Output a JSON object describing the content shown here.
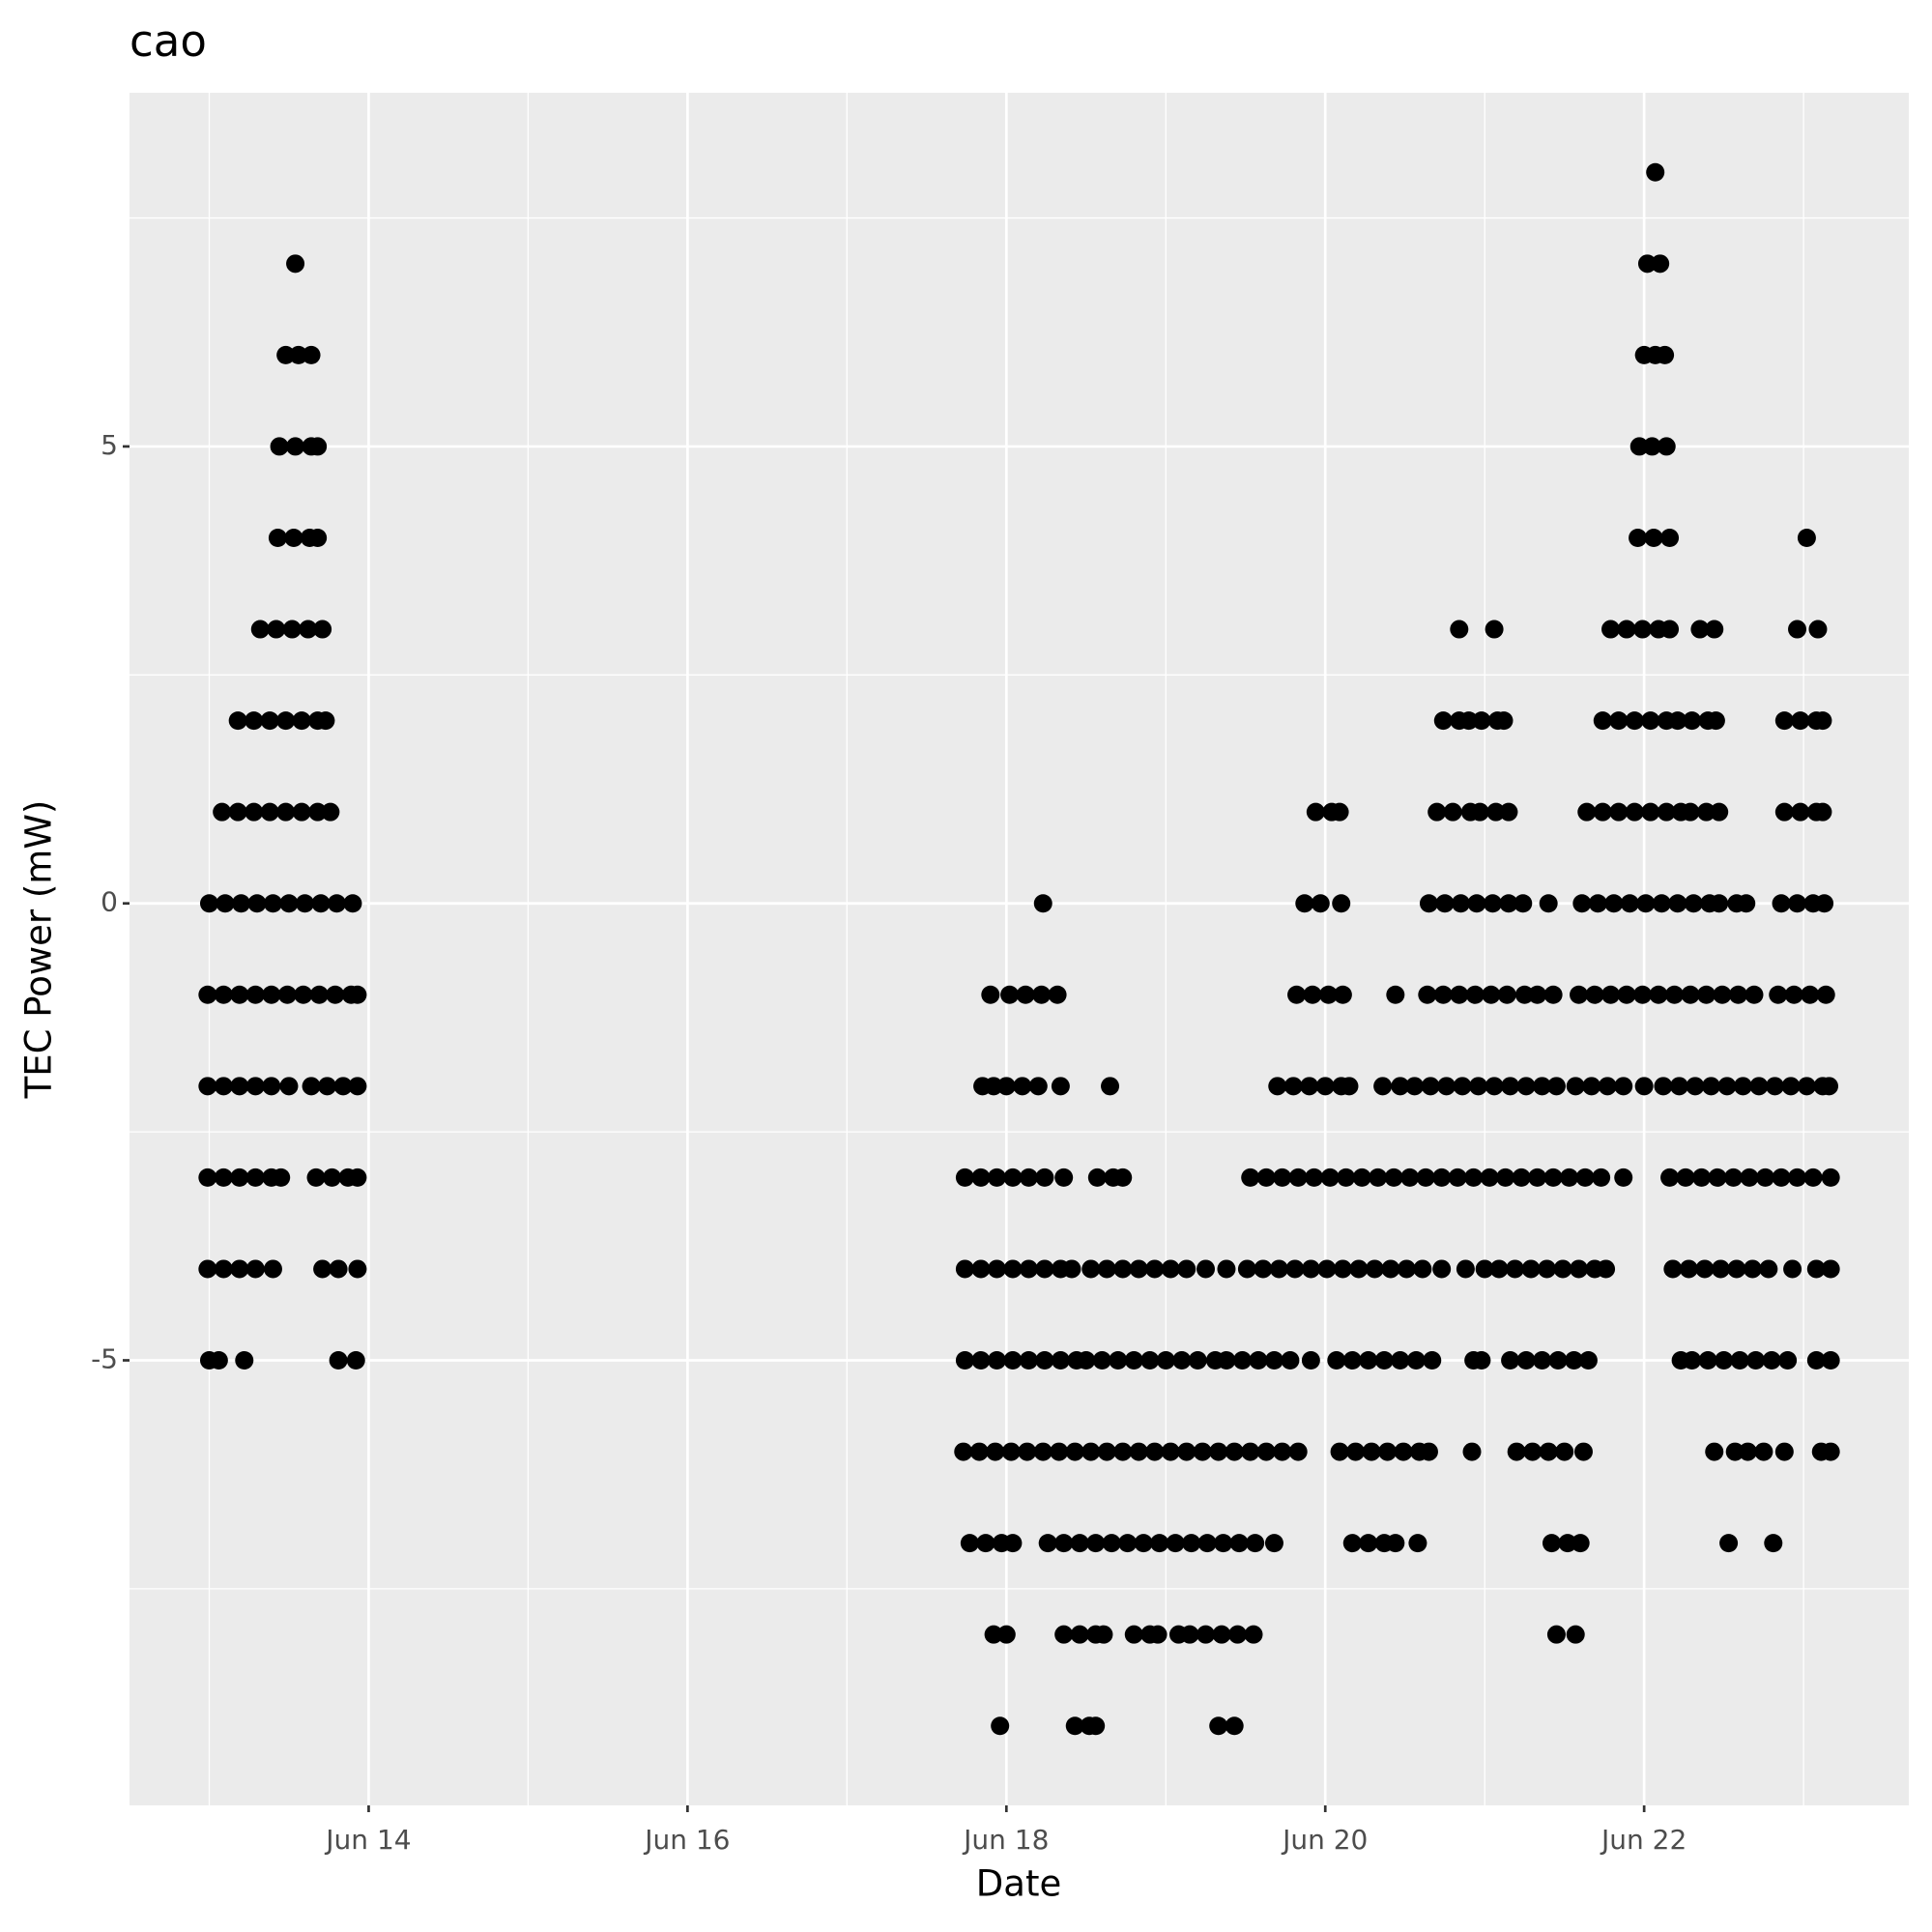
{
  "chart_data": {
    "type": "scatter",
    "title": "cao",
    "xlabel": "Date",
    "ylabel": "TEC Power (mW)",
    "xlim": [
      12.5,
      23.66
    ],
    "ylim": [
      -9.87,
      8.87
    ],
    "xticks": [
      {
        "value": 14,
        "label": "Jun 14"
      },
      {
        "value": 16,
        "label": "Jun 16"
      },
      {
        "value": 18,
        "label": "Jun 18"
      },
      {
        "value": 20,
        "label": "Jun 20"
      },
      {
        "value": 22,
        "label": "Jun 22"
      }
    ],
    "yticks": [
      -5,
      0,
      5
    ],
    "grid": true,
    "color": "#000000",
    "series": [
      {
        "x": [
          22.07
        ],
        "values": [
          8
        ]
      },
      {
        "x": [
          13.54,
          22.02,
          22.1
        ],
        "values": [
          7,
          7,
          7
        ]
      },
      {
        "x": [
          13.48,
          13.56,
          13.64,
          22.0,
          22.07,
          22.13
        ],
        "values": [
          6,
          6,
          6,
          6,
          6,
          6
        ]
      },
      {
        "x": [
          13.44,
          13.54,
          13.64,
          13.68,
          21.97,
          22.05,
          22.14
        ],
        "values": [
          5,
          5,
          5,
          5,
          5,
          5,
          5
        ]
      },
      {
        "x": [
          13.43,
          13.53,
          13.63,
          13.68,
          21.96,
          22.06,
          22.16,
          23.02
        ],
        "values": [
          4,
          4,
          4,
          4,
          4,
          4,
          4,
          4
        ]
      },
      {
        "x": [
          13.32,
          13.42,
          13.52,
          13.62,
          13.71,
          20.84,
          21.06,
          21.79,
          21.89,
          21.99,
          22.09,
          22.16,
          22.35,
          22.44,
          22.96,
          23.09
        ],
        "values": [
          3,
          3,
          3,
          3,
          3,
          3,
          3,
          3,
          3,
          3,
          3,
          3,
          3,
          3,
          3,
          3
        ]
      },
      {
        "x": [
          13.18,
          13.28,
          13.38,
          13.48,
          13.58,
          13.68,
          13.73,
          20.74,
          20.84,
          20.9,
          20.98,
          21.08,
          21.12,
          21.74,
          21.84,
          21.94,
          22.04,
          22.14,
          22.21,
          22.3,
          22.4,
          22.45,
          22.88,
          22.98,
          23.08,
          23.12
        ],
        "values": [
          2,
          2,
          2,
          2,
          2,
          2,
          2,
          2,
          2,
          2,
          2,
          2,
          2,
          2,
          2,
          2,
          2,
          2,
          2,
          2,
          2,
          2,
          2,
          2,
          2,
          2
        ]
      },
      {
        "x": [
          13.08,
          13.18,
          13.28,
          13.38,
          13.48,
          13.58,
          13.68,
          13.76,
          19.94,
          20.04,
          20.09,
          20.7,
          20.8,
          20.91,
          20.97,
          21.07,
          21.15,
          21.64,
          21.74,
          21.84,
          21.94,
          22.04,
          22.14,
          22.23,
          22.29,
          22.39,
          22.47,
          22.88,
          22.98,
          23.08,
          23.12
        ],
        "values": [
          1,
          1,
          1,
          1,
          1,
          1,
          1,
          1,
          1,
          1,
          1,
          1,
          1,
          1,
          1,
          1,
          1,
          1,
          1,
          1,
          1,
          1,
          1,
          1,
          1,
          1,
          1,
          1,
          1,
          1,
          1
        ]
      },
      {
        "x": [
          13.0,
          13.1,
          13.2,
          13.3,
          13.4,
          13.5,
          13.6,
          13.7,
          13.8,
          13.9,
          18.23,
          19.87,
          19.97,
          20.1,
          20.65,
          20.75,
          20.85,
          20.95,
          21.05,
          21.15,
          21.24,
          21.4,
          21.61,
          21.71,
          21.81,
          21.91,
          22.01,
          22.11,
          22.21,
          22.31,
          22.41,
          22.47,
          22.58,
          22.64,
          22.86,
          22.96,
          23.06,
          23.13
        ],
        "values": [
          0,
          0,
          0,
          0,
          0,
          0,
          0,
          0,
          0,
          0,
          0,
          0,
          0,
          0,
          0,
          0,
          0,
          0,
          0,
          0,
          0,
          0,
          0,
          0,
          0,
          0,
          0,
          0,
          0,
          0,
          0,
          0,
          0,
          0,
          0,
          0,
          0,
          0
        ]
      },
      {
        "x": [
          12.99,
          13.09,
          13.19,
          13.29,
          13.39,
          13.49,
          13.59,
          13.69,
          13.79,
          13.89,
          13.93,
          17.9,
          18.02,
          18.12,
          18.22,
          18.32,
          19.82,
          19.92,
          20.02,
          20.11,
          20.44,
          20.64,
          20.74,
          20.84,
          20.94,
          21.04,
          21.14,
          21.25,
          21.33,
          21.43,
          21.59,
          21.69,
          21.79,
          21.89,
          21.99,
          22.09,
          22.19,
          22.29,
          22.39,
          22.49,
          22.59,
          22.69,
          22.84,
          22.94,
          23.04,
          23.14
        ],
        "values": [
          -1,
          -1,
          -1,
          -1,
          -1,
          -1,
          -1,
          -1,
          -1,
          -1,
          -1,
          -1,
          -1,
          -1,
          -1,
          -1,
          -1,
          -1,
          -1,
          -1,
          -1,
          -1,
          -1,
          -1,
          -1,
          -1,
          -1,
          -1,
          -1,
          -1,
          -1,
          -1,
          -1,
          -1,
          -1,
          -1,
          -1,
          -1,
          -1,
          -1,
          -1,
          -1,
          -1,
          -1,
          -1,
          -1
        ]
      },
      {
        "x": [
          12.99,
          13.09,
          13.19,
          13.29,
          13.39,
          13.5,
          13.64,
          13.74,
          13.84,
          13.93,
          17.85,
          17.92,
          18.0,
          18.1,
          18.2,
          18.34,
          18.65,
          19.7,
          19.8,
          19.9,
          20.0,
          20.1,
          20.15,
          20.36,
          20.47,
          20.56,
          20.66,
          20.76,
          20.86,
          20.96,
          21.06,
          21.16,
          21.26,
          21.36,
          21.45,
          21.57,
          21.67,
          21.77,
          21.87,
          22.0,
          22.12,
          22.22,
          22.32,
          22.42,
          22.52,
          22.62,
          22.72,
          22.82,
          22.92,
          23.02,
          23.12,
          23.16
        ],
        "values": [
          -2,
          -2,
          -2,
          -2,
          -2,
          -2,
          -2,
          -2,
          -2,
          -2,
          -2,
          -2,
          -2,
          -2,
          -2,
          -2,
          -2,
          -2,
          -2,
          -2,
          -2,
          -2,
          -2,
          -2,
          -2,
          -2,
          -2,
          -2,
          -2,
          -2,
          -2,
          -2,
          -2,
          -2,
          -2,
          -2,
          -2,
          -2,
          -2,
          -2,
          -2,
          -2,
          -2,
          -2,
          -2,
          -2,
          -2,
          -2,
          -2,
          -2,
          -2,
          -2
        ]
      },
      {
        "x": [
          12.99,
          13.09,
          13.19,
          13.29,
          13.39,
          13.45,
          13.67,
          13.77,
          13.87,
          13.93,
          17.74,
          17.84,
          17.94,
          18.04,
          18.14,
          18.24,
          18.36,
          18.57,
          18.67,
          18.73,
          19.53,
          19.63,
          19.73,
          19.83,
          19.93,
          20.03,
          20.13,
          20.23,
          20.33,
          20.43,
          20.53,
          20.63,
          20.73,
          20.83,
          20.93,
          21.03,
          21.13,
          21.23,
          21.33,
          21.43,
          21.53,
          21.63,
          21.73,
          21.87,
          22.16,
          22.26,
          22.36,
          22.46,
          22.56,
          22.66,
          22.76,
          22.86,
          22.96,
          23.06,
          23.17
        ],
        "values": [
          -3,
          -3,
          -3,
          -3,
          -3,
          -3,
          -3,
          -3,
          -3,
          -3,
          -3,
          -3,
          -3,
          -3,
          -3,
          -3,
          -3,
          -3,
          -3,
          -3,
          -3,
          -3,
          -3,
          -3,
          -3,
          -3,
          -3,
          -3,
          -3,
          -3,
          -3,
          -3,
          -3,
          -3,
          -3,
          -3,
          -3,
          -3,
          -3,
          -3,
          -3,
          -3,
          -3,
          -3,
          -3,
          -3,
          -3,
          -3,
          -3,
          -3,
          -3,
          -3,
          -3,
          -3,
          -3
        ]
      },
      {
        "x": [
          12.99,
          13.09,
          13.19,
          13.29,
          13.4,
          13.71,
          13.81,
          13.93,
          17.74,
          17.84,
          17.94,
          18.04,
          18.14,
          18.24,
          18.34,
          18.41,
          18.53,
          18.63,
          18.73,
          18.83,
          18.93,
          19.03,
          19.13,
          19.25,
          19.38,
          19.51,
          19.61,
          19.71,
          19.81,
          19.91,
          20.01,
          20.11,
          20.21,
          20.31,
          20.41,
          20.51,
          20.61,
          20.73,
          20.88,
          21.0,
          21.09,
          21.19,
          21.29,
          21.39,
          21.49,
          21.59,
          21.69,
          21.76,
          22.18,
          22.28,
          22.38,
          22.48,
          22.58,
          22.68,
          22.78,
          22.93,
          23.08,
          23.17
        ],
        "values": [
          -4,
          -4,
          -4,
          -4,
          -4,
          -4,
          -4,
          -4,
          -4,
          -4,
          -4,
          -4,
          -4,
          -4,
          -4,
          -4,
          -4,
          -4,
          -4,
          -4,
          -4,
          -4,
          -4,
          -4,
          -4,
          -4,
          -4,
          -4,
          -4,
          -4,
          -4,
          -4,
          -4,
          -4,
          -4,
          -4,
          -4,
          -4,
          -4,
          -4,
          -4,
          -4,
          -4,
          -4,
          -4,
          -4,
          -4,
          -4,
          -4,
          -4,
          -4,
          -4,
          -4,
          -4,
          -4,
          -4,
          -4,
          -4
        ]
      },
      {
        "x": [
          13.0,
          13.06,
          13.22,
          13.81,
          13.92,
          17.74,
          17.84,
          17.94,
          18.04,
          18.14,
          18.24,
          18.34,
          18.44,
          18.5,
          18.6,
          18.7,
          18.8,
          18.9,
          19.0,
          19.1,
          19.2,
          19.31,
          19.38,
          19.48,
          19.58,
          19.68,
          19.78,
          19.91,
          20.07,
          20.17,
          20.27,
          20.37,
          20.47,
          20.57,
          20.67,
          20.93,
          20.98,
          21.16,
          21.26,
          21.36,
          21.46,
          21.56,
          21.65,
          22.23,
          22.3,
          22.4,
          22.5,
          22.6,
          22.7,
          22.8,
          22.9,
          23.08,
          23.17
        ],
        "values": [
          -5,
          -5,
          -5,
          -5,
          -5,
          -5,
          -5,
          -5,
          -5,
          -5,
          -5,
          -5,
          -5,
          -5,
          -5,
          -5,
          -5,
          -5,
          -5,
          -5,
          -5,
          -5,
          -5,
          -5,
          -5,
          -5,
          -5,
          -5,
          -5,
          -5,
          -5,
          -5,
          -5,
          -5,
          -5,
          -5,
          -5,
          -5,
          -5,
          -5,
          -5,
          -5,
          -5,
          -5,
          -5,
          -5,
          -5,
          -5,
          -5,
          -5,
          -5,
          -5,
          -5
        ]
      },
      {
        "x": [
          17.73,
          17.83,
          17.93,
          18.03,
          18.13,
          18.23,
          18.33,
          18.43,
          18.53,
          18.63,
          18.73,
          18.83,
          18.93,
          19.03,
          19.13,
          19.23,
          19.33,
          19.43,
          19.53,
          19.63,
          19.73,
          19.83,
          20.09,
          20.19,
          20.29,
          20.39,
          20.49,
          20.59,
          20.65,
          20.92,
          21.2,
          21.3,
          21.4,
          21.5,
          21.62,
          22.44,
          22.57,
          22.65,
          22.75,
          22.88,
          23.11,
          23.17
        ],
        "values": [
          -6,
          -6,
          -6,
          -6,
          -6,
          -6,
          -6,
          -6,
          -6,
          -6,
          -6,
          -6,
          -6,
          -6,
          -6,
          -6,
          -6,
          -6,
          -6,
          -6,
          -6,
          -6,
          -6,
          -6,
          -6,
          -6,
          -6,
          -6,
          -6,
          -6,
          -6,
          -6,
          -6,
          -6,
          -6,
          -6,
          -6,
          -6,
          -6,
          -6,
          -6,
          -6
        ]
      },
      {
        "x": [
          17.77,
          17.87,
          17.97,
          18.04,
          18.26,
          18.36,
          18.46,
          18.56,
          18.66,
          18.76,
          18.86,
          18.96,
          19.06,
          19.16,
          19.26,
          19.36,
          19.46,
          19.56,
          19.68,
          20.17,
          20.27,
          20.37,
          20.44,
          20.58,
          21.42,
          21.52,
          21.6,
          22.53,
          22.81
        ],
        "values": [
          -7,
          -7,
          -7,
          -7,
          -7,
          -7,
          -7,
          -7,
          -7,
          -7,
          -7,
          -7,
          -7,
          -7,
          -7,
          -7,
          -7,
          -7,
          -7,
          -7,
          -7,
          -7,
          -7,
          -7,
          -7,
          -7,
          -7,
          -7,
          -7
        ]
      },
      {
        "x": [
          17.92,
          18.0,
          18.36,
          18.46,
          18.56,
          18.61,
          18.8,
          18.9,
          18.95,
          19.08,
          19.15,
          19.25,
          19.35,
          19.45,
          19.55,
          21.45,
          21.57
        ],
        "values": [
          -8,
          -8,
          -8,
          -8,
          -8,
          -8,
          -8,
          -8,
          -8,
          -8,
          -8,
          -8,
          -8,
          -8,
          -8,
          -8,
          -8
        ]
      },
      {
        "x": [
          17.96,
          18.43,
          18.52,
          18.56,
          19.33,
          19.43
        ],
        "values": [
          -9,
          -9,
          -9,
          -9,
          -9,
          -9
        ]
      }
    ]
  }
}
